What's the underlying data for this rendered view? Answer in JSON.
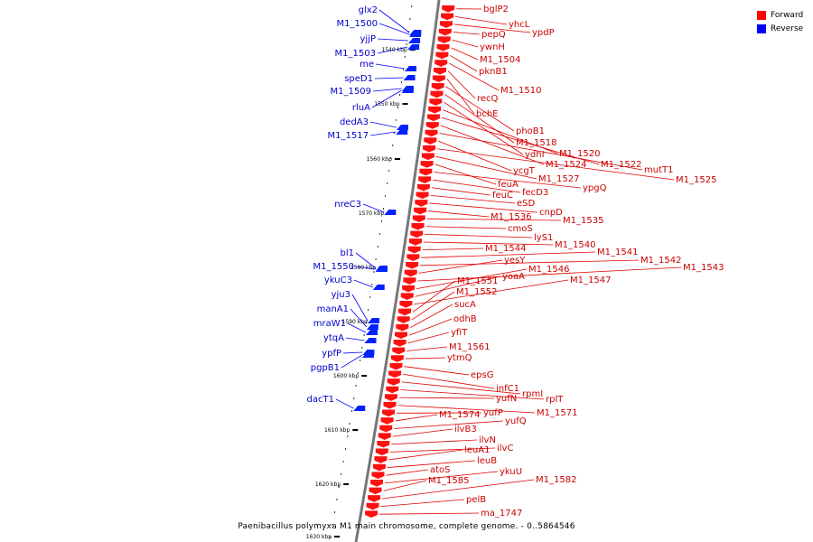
{
  "legend": {
    "forward_label": "Forward",
    "reverse_label": "Reverse",
    "forward_color": "#ff0000",
    "reverse_color": "#0000ff"
  },
  "caption": "Paenibacillus polymyxa M1 main chromosome, complete genome. - 0..5864546",
  "axis": {
    "ticks": [
      "1540 kbp",
      "1550 kbp",
      "1560 kbp",
      "1570 kbp",
      "1580 kbp",
      "1590 kbp",
      "1600 kbp",
      "1610 kbp",
      "1620 kbp",
      "1630 kbp"
    ]
  },
  "reverse_genes": [
    "glx2",
    "M1_1500",
    "yjjP",
    "M1_1503",
    "me",
    "speD1",
    "M1_1509",
    "rluA",
    "dedA3",
    "M1_1517",
    "nreC3",
    "bl1",
    "M1_1550",
    "ykuC3",
    "yju3",
    "manA1",
    "mraW1",
    "ytqA",
    "ypfP",
    "pgpB1",
    "dacT1"
  ],
  "forward_genes": [
    "bglP2",
    "yhcL",
    "ypdP",
    "pepQ",
    "ywnH",
    "M1_1504",
    "pknB1",
    "M1_1510",
    "recQ",
    "bchE",
    "phoB1",
    "M1_1518",
    "ydhI",
    "M1_1520",
    "M1_1522",
    "M1_1524",
    "mutT1",
    "ycgT",
    "M1_1525",
    "M1_1527",
    "feuA",
    "ypgQ",
    "fecD3",
    "feuC",
    "eSD",
    "cnpD",
    "M1_1536",
    "M1_1535",
    "cmoS",
    "lyS1",
    "M1_1540",
    "M1_1544",
    "M1_1541",
    "M1_1542",
    "yesY",
    "M1_1543",
    "M1_1546",
    "yoaA",
    "M1_1547",
    "M1_1551",
    "M1_1552",
    "sucA",
    "odhB",
    "yfiT",
    "M1_1561",
    "ytmQ",
    "epsG",
    "infC1",
    "rpmI",
    "rplT",
    "yufN",
    "M1_1571",
    "yufP",
    "M1_1574",
    "yufQ",
    "ilvB3",
    "ilvN",
    "ilvC",
    "leuA1",
    "leuB",
    "atoS",
    "ykuU",
    "M1_1585",
    "M1_1582",
    "pelB",
    "ma_1747"
  ]
}
